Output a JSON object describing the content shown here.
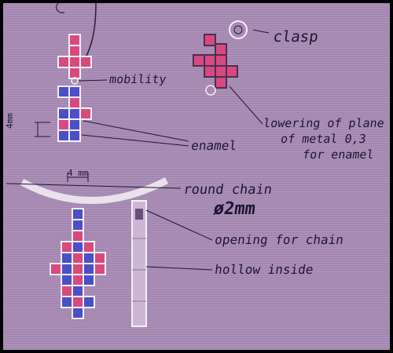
{
  "labels": {
    "clasp": "clasp",
    "mobility": "mobility",
    "enamel": "enamel",
    "plane_line1": "lowering of plane",
    "plane_line2": "of metal 0,3",
    "plane_line3": "for enamel",
    "round_chain": "round chain",
    "diameter": "ø2mm",
    "opening": "opening for chain",
    "hollow": "hollow inside"
  },
  "dimensions": {
    "vertical": "4mm",
    "width": "4 mm"
  },
  "colors": {
    "paper": "#a98cb6",
    "enamel_pink": "#d84a7e",
    "enamel_blue": "#4b4fc8",
    "metal_white": "#f4f0f6",
    "ink": "#1d1630"
  },
  "icons": {
    "clasp": "clasp-icon",
    "pendant_side": "pendant-side-view-icon"
  }
}
